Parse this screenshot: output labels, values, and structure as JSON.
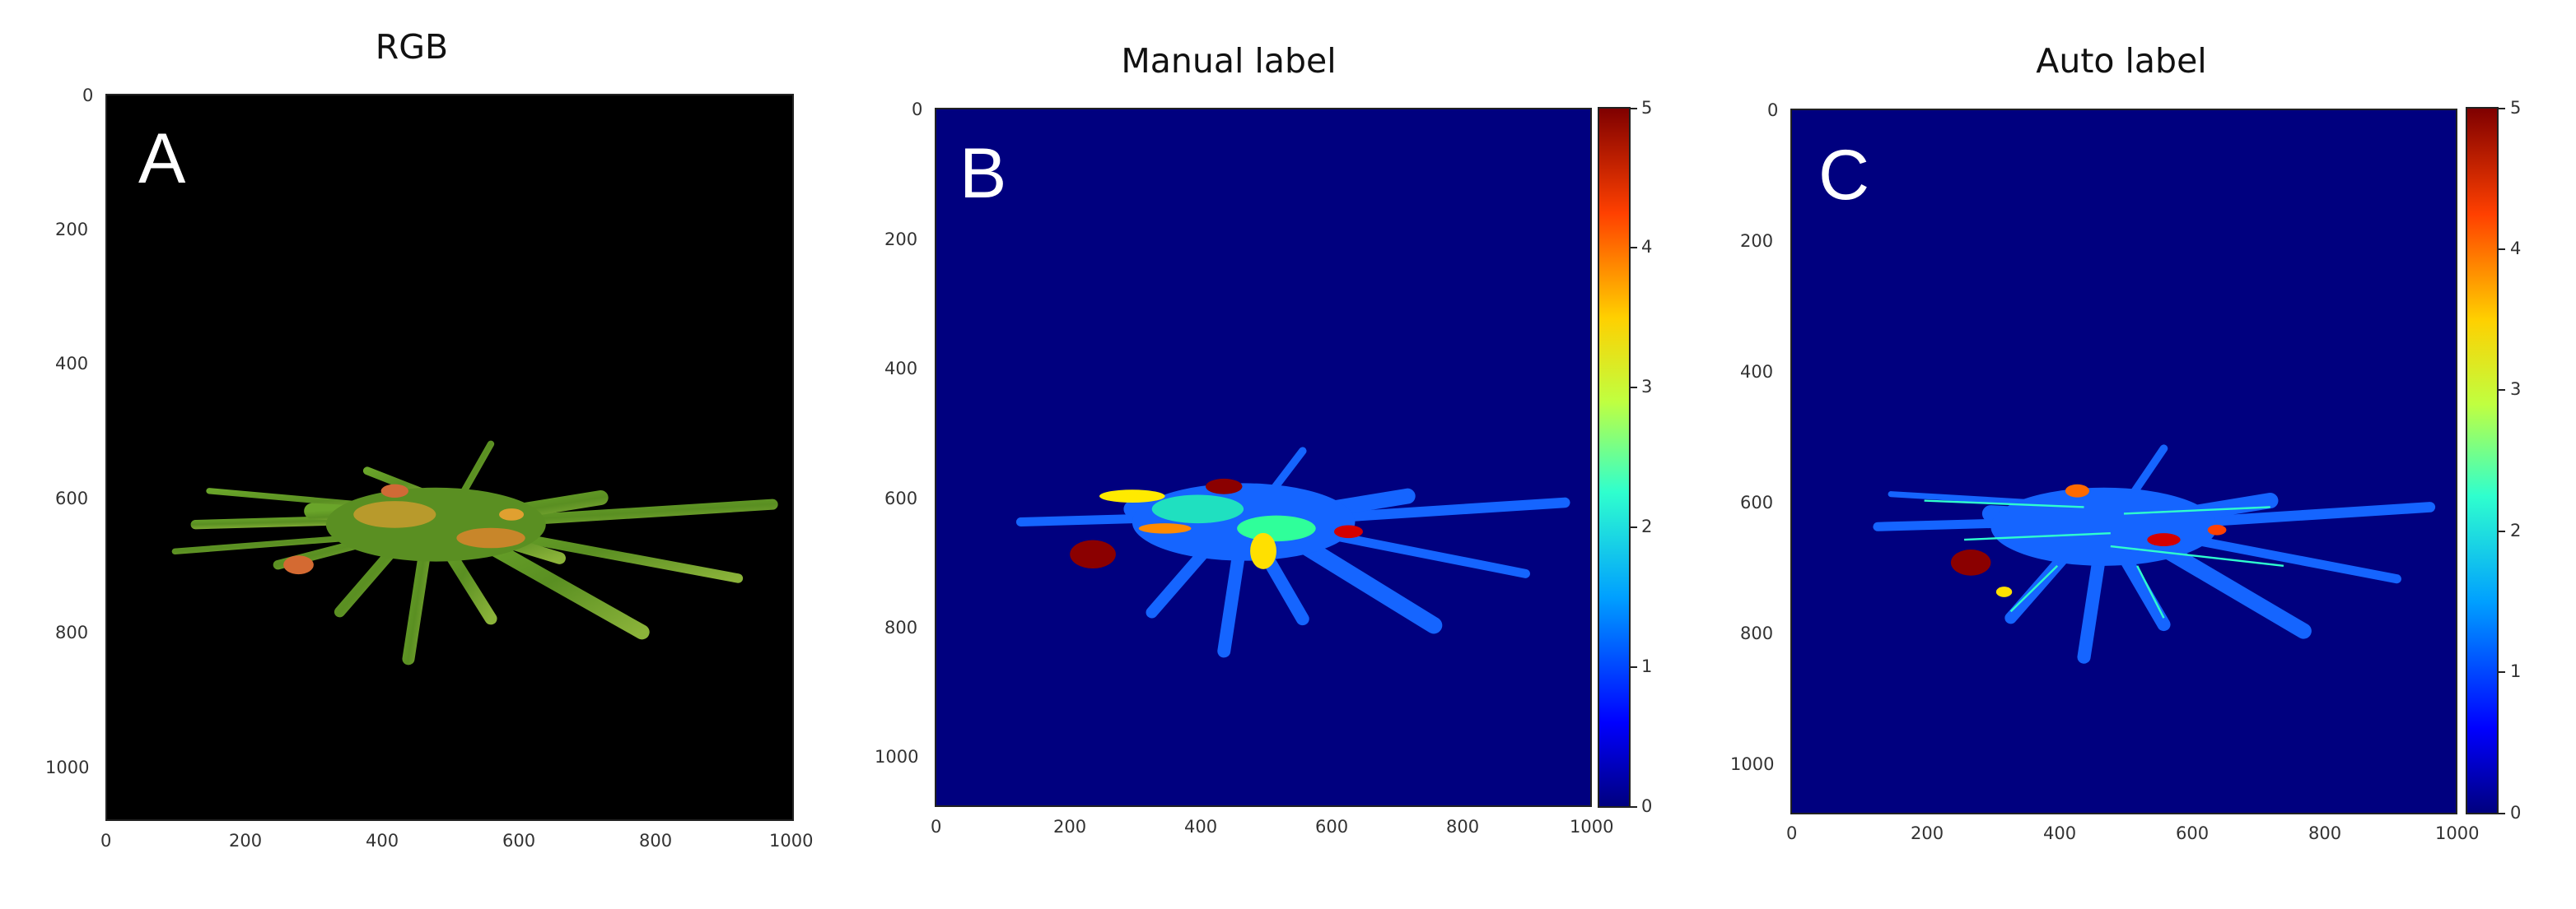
{
  "panels": [
    {
      "title": "RGB",
      "letter": "A",
      "x_ticks": [
        "0",
        "200",
        "400",
        "600",
        "800",
        "1000"
      ],
      "y_ticks": [
        "0",
        "200",
        "400",
        "600",
        "800",
        "1000"
      ]
    },
    {
      "title": "Manual label",
      "letter": "B",
      "x_ticks": [
        "0",
        "200",
        "400",
        "600",
        "800",
        "1000"
      ],
      "y_ticks": [
        "0",
        "200",
        "400",
        "600",
        "800",
        "1000"
      ],
      "colorbar_ticks": [
        "0",
        "1",
        "2",
        "3",
        "4",
        "5"
      ]
    },
    {
      "title": "Auto label",
      "letter": "C",
      "x_ticks": [
        "0",
        "200",
        "400",
        "600",
        "800",
        "1000"
      ],
      "y_ticks": [
        "0",
        "200",
        "400",
        "600",
        "800",
        "1000"
      ],
      "colorbar_ticks": [
        "0",
        "1",
        "2",
        "3",
        "4",
        "5"
      ]
    }
  ],
  "colors": {
    "image_background_rgb": "#000000",
    "label_background": "#00007f",
    "colormap": "jet"
  }
}
